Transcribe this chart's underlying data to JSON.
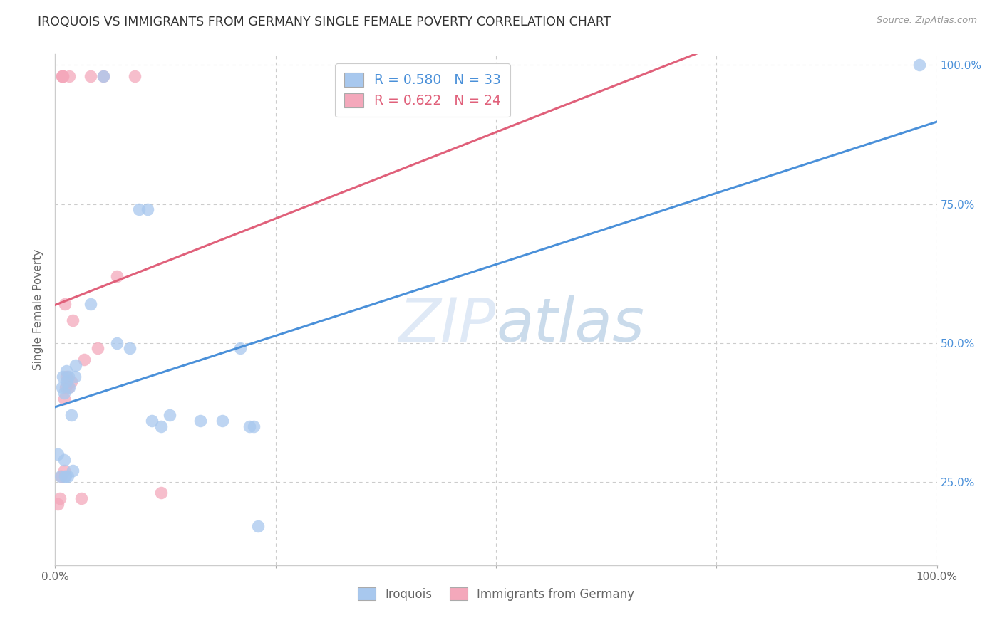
{
  "title": "IROQUOIS VS IMMIGRANTS FROM GERMANY SINGLE FEMALE POVERTY CORRELATION CHART",
  "source": "Source: ZipAtlas.com",
  "ylabel": "Single Female Poverty",
  "xlim": [
    0,
    1.0
  ],
  "ylim": [
    0.1,
    1.02
  ],
  "xtick_positions": [
    0.0,
    0.25,
    0.5,
    0.75,
    1.0
  ],
  "xtick_labels": [
    "0.0%",
    "",
    "",
    "",
    "100.0%"
  ],
  "ytick_positions": [
    0.25,
    0.5,
    0.75,
    1.0
  ],
  "ytick_labels_right": [
    "25.0%",
    "50.0%",
    "75.0%",
    "100.0%"
  ],
  "watermark": "ZIPatlas",
  "blue_R": 0.58,
  "blue_N": 33,
  "pink_R": 0.622,
  "pink_N": 24,
  "blue_color": "#a8c8ee",
  "pink_color": "#f4a8bb",
  "blue_line_color": "#4a90d9",
  "pink_line_color": "#e0607a",
  "legend_blue_label": "Iroquois",
  "legend_pink_label": "Immigrants from Germany",
  "blue_x": [
    0.003,
    0.006,
    0.008,
    0.009,
    0.01,
    0.01,
    0.011,
    0.012,
    0.013,
    0.013,
    0.014,
    0.015,
    0.016,
    0.018,
    0.02,
    0.022,
    0.023,
    0.04,
    0.055,
    0.07,
    0.085,
    0.095,
    0.105,
    0.11,
    0.12,
    0.13,
    0.165,
    0.19,
    0.21,
    0.22,
    0.225,
    0.23,
    0.98
  ],
  "blue_y": [
    0.3,
    0.26,
    0.42,
    0.44,
    0.41,
    0.29,
    0.26,
    0.26,
    0.43,
    0.45,
    0.26,
    0.44,
    0.42,
    0.37,
    0.27,
    0.44,
    0.46,
    0.57,
    0.98,
    0.5,
    0.49,
    0.74,
    0.74,
    0.36,
    0.35,
    0.37,
    0.36,
    0.36,
    0.49,
    0.35,
    0.35,
    0.17,
    1.0
  ],
  "pink_x": [
    0.003,
    0.005,
    0.007,
    0.008,
    0.008,
    0.009,
    0.009,
    0.01,
    0.01,
    0.011,
    0.012,
    0.013,
    0.015,
    0.016,
    0.018,
    0.02,
    0.03,
    0.033,
    0.04,
    0.048,
    0.055,
    0.07,
    0.09,
    0.12
  ],
  "pink_y": [
    0.21,
    0.22,
    0.26,
    0.98,
    0.98,
    0.98,
    0.98,
    0.27,
    0.4,
    0.57,
    0.42,
    0.44,
    0.42,
    0.98,
    0.43,
    0.54,
    0.22,
    0.47,
    0.98,
    0.49,
    0.98,
    0.62,
    0.98,
    0.23
  ],
  "background_color": "#ffffff",
  "grid_color": "#cccccc",
  "title_color": "#333333",
  "axis_label_color": "#666666",
  "right_axis_color": "#4a90d9",
  "legend_R_color": "#4a90d9",
  "legend_pink_R_color": "#e0607a",
  "figsize": [
    14.06,
    8.92
  ],
  "dpi": 100
}
